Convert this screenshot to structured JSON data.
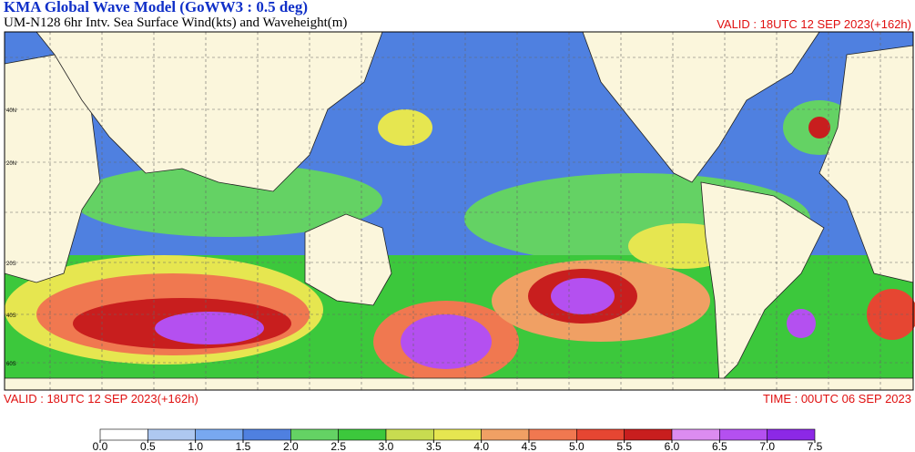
{
  "header": {
    "title": "KMA  Global Wave Model (GoWW3 : 0.5 deg)",
    "subtitle": "UM-N128  6hr Intv. Sea Surface Wind(kts) and Waveheight(m)",
    "valid_top": "VALID : 18UTC 12 SEP 2023(+162h)"
  },
  "map": {
    "lat_labels": [
      "40N",
      "20N",
      "20S",
      "40S",
      "60S"
    ]
  },
  "footer": {
    "valid": "VALID : 18UTC 12 SEP 2023(+162h)",
    "time": "TIME : 00UTC 06 SEP 2023"
  },
  "colorbar": {
    "ticks": [
      {
        "value": 0,
        "label": "0.0"
      },
      0.5,
      {
        "value": 1,
        "label": "1.0"
      },
      1.5,
      {
        "value": 2,
        "label": "2.0"
      },
      2.5,
      {
        "value": 3,
        "label": "3.0"
      },
      3.5,
      {
        "value": 4,
        "label": "4.0"
      },
      4.5,
      {
        "value": 5,
        "label": "5.0"
      },
      5.5,
      {
        "value": 6,
        "label": "6.0"
      },
      6.5,
      {
        "value": 7,
        "label": "7.0"
      },
      7.5
    ],
    "colors": [
      "#ffffff",
      "#aec8f0",
      "#78a8f0",
      "#4f80e0",
      "#64d264",
      "#3cc83c",
      "#c8dc50",
      "#e6e650",
      "#f0a064",
      "#f07850",
      "#e64632",
      "#c81e1e",
      "#dc8cf0",
      "#b450f0",
      "#8c28e6"
    ]
  }
}
